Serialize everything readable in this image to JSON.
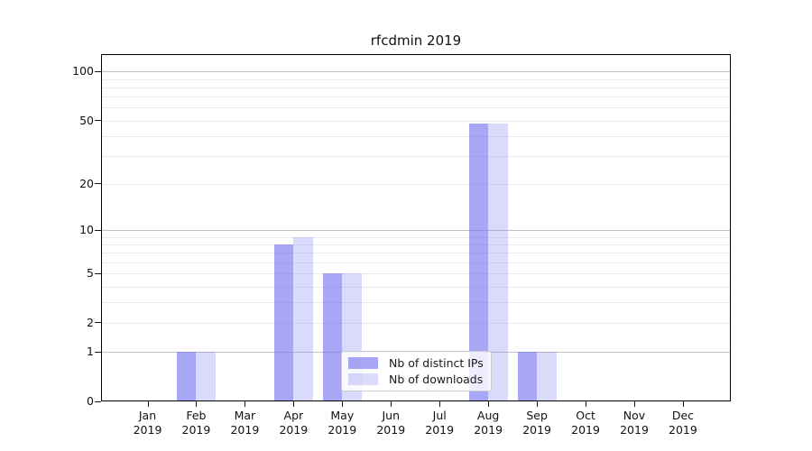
{
  "chart_data": {
    "type": "bar",
    "title": "rfcdmin 2019",
    "categories": [
      "Jan",
      "Feb",
      "Mar",
      "Apr",
      "May",
      "Jun",
      "Jul",
      "Aug",
      "Sep",
      "Oct",
      "Nov",
      "Dec"
    ],
    "category_year": "2019",
    "series": [
      {
        "name": "Nb of distinct IPs",
        "color": "rgba(120,120,240,0.65)",
        "base_color": "#7878f0",
        "values": [
          0,
          1,
          0,
          8,
          5,
          0,
          0,
          48,
          1,
          0,
          0,
          0
        ]
      },
      {
        "name": "Nb of downloads",
        "color": "rgba(120,120,240,0.27)",
        "base_color": "#7878f0",
        "values": [
          0,
          1,
          0,
          9,
          5,
          0,
          0,
          48,
          1,
          0,
          0,
          0
        ]
      }
    ],
    "xlabel": "",
    "ylabel": "",
    "yscale": "log(1+x)",
    "ytick_labels": [
      0,
      1,
      2,
      5,
      10,
      20,
      50,
      100
    ],
    "ylim": [
      0,
      110
    ],
    "grid": true,
    "legend_position": "lower center",
    "gridline_major_color": "#c3c3c3",
    "gridline_minor_color": "#ebebeb"
  }
}
